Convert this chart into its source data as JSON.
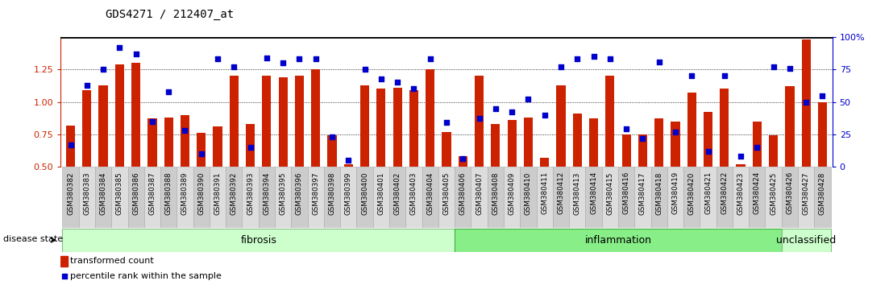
{
  "title": "GDS4271 / 212407_at",
  "samples": [
    "GSM380382",
    "GSM380383",
    "GSM380384",
    "GSM380385",
    "GSM380386",
    "GSM380387",
    "GSM380388",
    "GSM380389",
    "GSM380390",
    "GSM380391",
    "GSM380392",
    "GSM380393",
    "GSM380394",
    "GSM380395",
    "GSM380396",
    "GSM380397",
    "GSM380398",
    "GSM380399",
    "GSM380400",
    "GSM380401",
    "GSM380402",
    "GSM380403",
    "GSM380404",
    "GSM380405",
    "GSM380406",
    "GSM380407",
    "GSM380408",
    "GSM380409",
    "GSM380410",
    "GSM380411",
    "GSM380412",
    "GSM380413",
    "GSM380414",
    "GSM380415",
    "GSM380416",
    "GSM380417",
    "GSM380418",
    "GSM380419",
    "GSM380420",
    "GSM380421",
    "GSM380422",
    "GSM380423",
    "GSM380424",
    "GSM380425",
    "GSM380426",
    "GSM380427",
    "GSM380428"
  ],
  "bar_values": [
    0.82,
    1.09,
    1.13,
    1.29,
    1.3,
    0.87,
    0.88,
    0.9,
    0.76,
    0.81,
    1.2,
    0.83,
    1.2,
    1.19,
    1.2,
    1.25,
    0.74,
    0.52,
    1.13,
    1.1,
    1.11,
    1.09,
    1.25,
    0.77,
    0.58,
    1.2,
    0.83,
    0.86,
    0.88,
    0.57,
    1.13,
    0.91,
    0.87,
    1.2,
    0.75,
    0.75,
    0.87,
    0.85,
    1.07,
    0.92,
    1.1,
    0.52,
    0.85,
    0.74,
    1.12,
    1.48,
    1.0
  ],
  "dot_values": [
    0.67,
    1.13,
    1.25,
    1.42,
    1.37,
    0.85,
    1.08,
    0.78,
    0.6,
    1.33,
    1.27,
    0.65,
    1.34,
    1.3,
    1.33,
    1.33,
    0.73,
    0.55,
    1.25,
    1.18,
    1.15,
    1.1,
    1.33,
    0.84,
    0.56,
    0.87,
    0.95,
    0.92,
    1.02,
    0.9,
    1.27,
    1.33,
    1.35,
    1.33,
    0.79,
    0.72,
    1.31,
    0.77,
    1.2,
    0.62,
    1.2,
    0.58,
    0.65,
    1.27,
    1.26,
    1.0,
    1.05
  ],
  "groups": [
    {
      "label": "fibrosis",
      "start": 0,
      "end": 23,
      "color": "#ccffcc",
      "edge": "#88bb88"
    },
    {
      "label": "inflammation",
      "start": 24,
      "end": 43,
      "color": "#88ee88",
      "edge": "#44aa44"
    },
    {
      "label": "unclassified",
      "start": 44,
      "end": 46,
      "color": "#ccffcc",
      "edge": "#88bb88"
    }
  ],
  "bar_color": "#cc2200",
  "dot_color": "#0000cc",
  "ylim_left": [
    0.5,
    1.5
  ],
  "ylim_right": [
    0,
    100
  ],
  "yticks_left": [
    0.5,
    0.75,
    1.0,
    1.25
  ],
  "yticks_right": [
    0,
    25,
    50,
    75,
    100
  ],
  "grid_values": [
    0.75,
    1.0,
    1.25
  ]
}
